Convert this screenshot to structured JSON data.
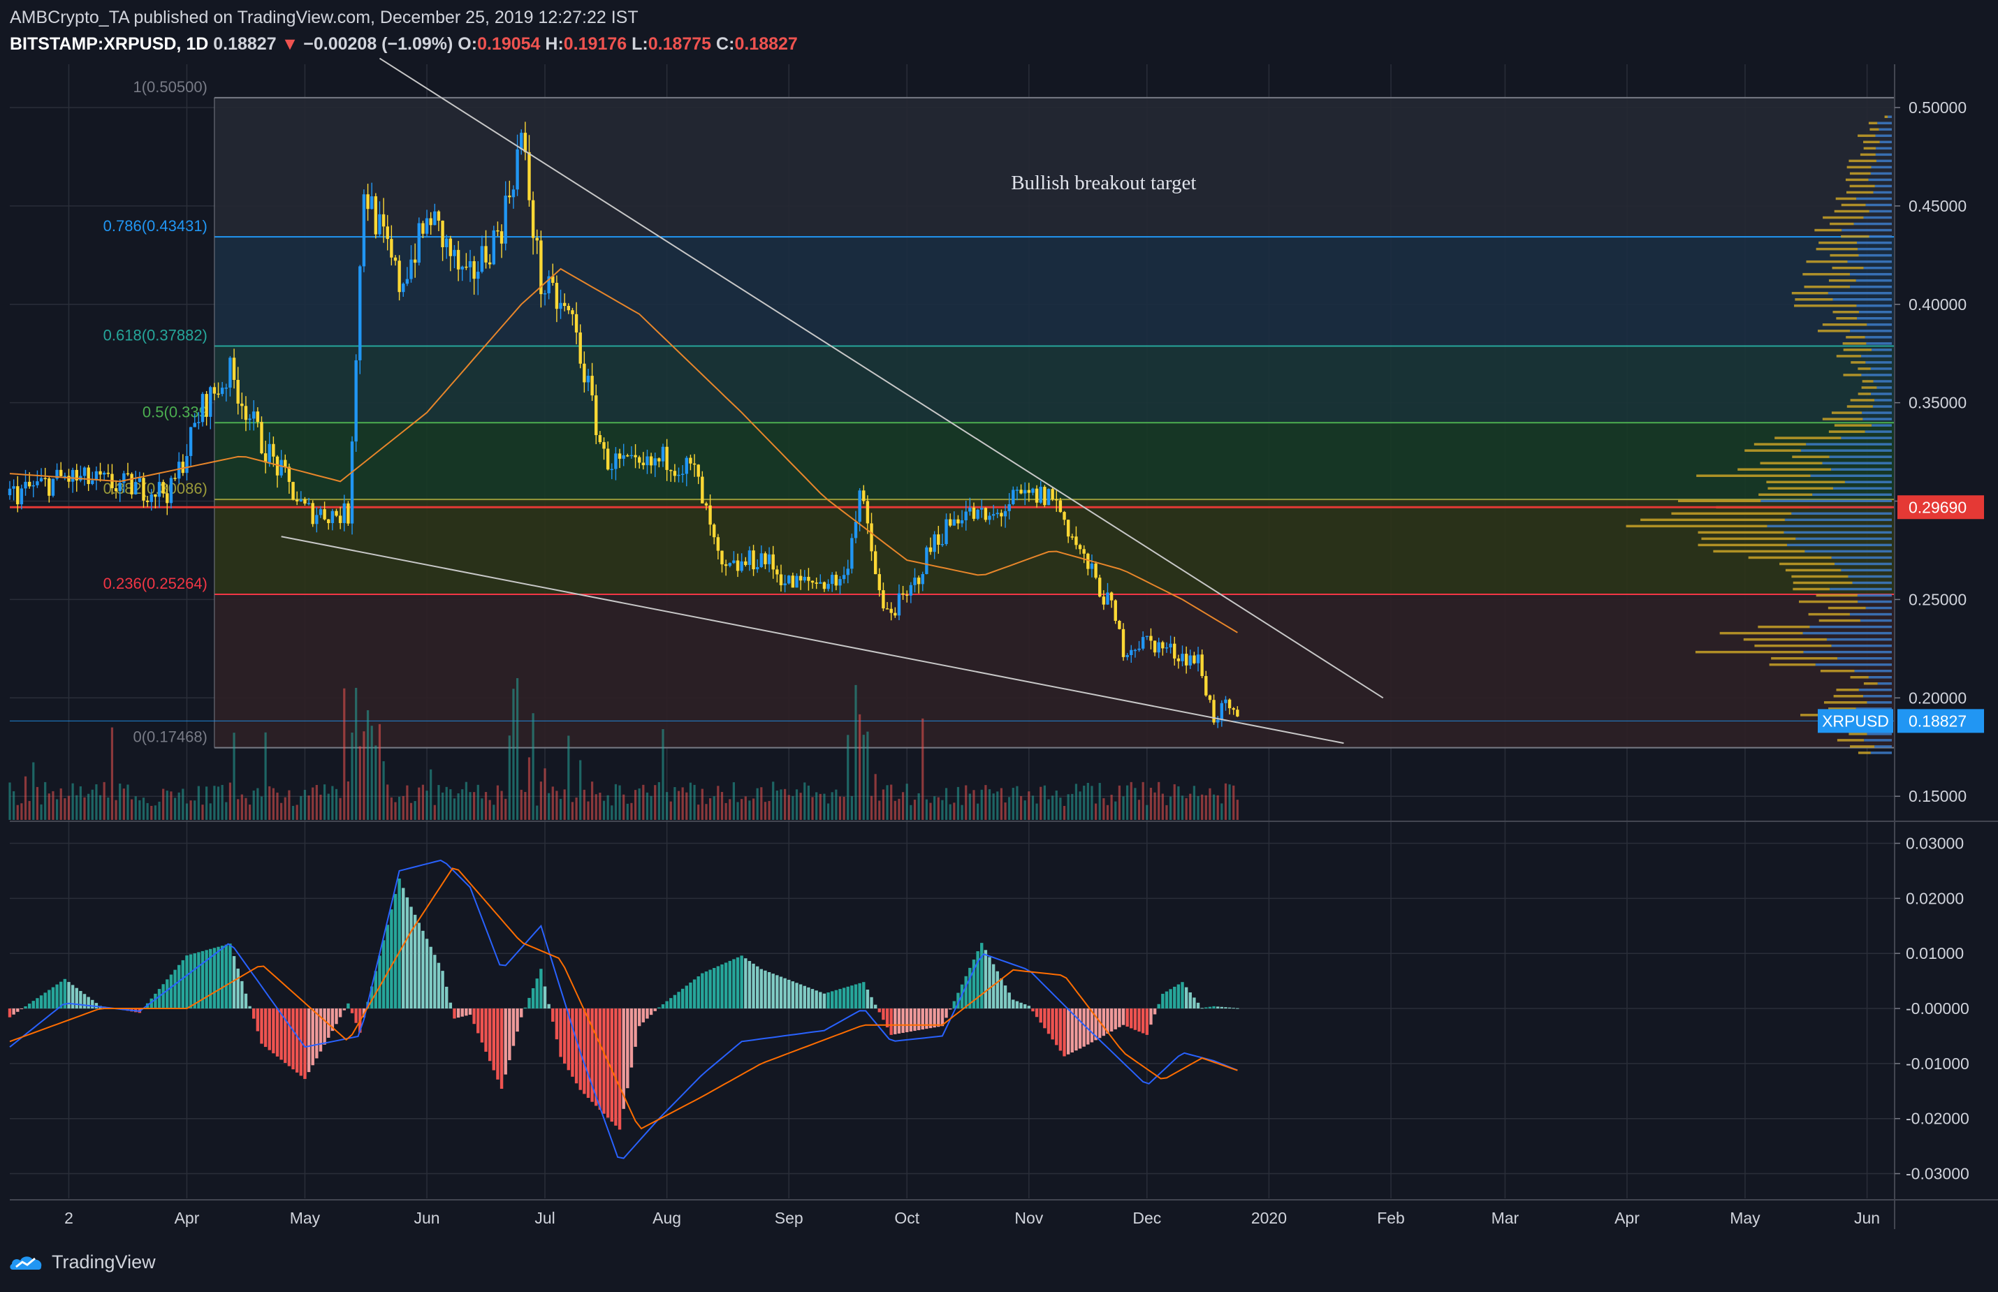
{
  "header": {
    "line1": "AMBCrypto_TA published on TradingView.com, December 25, 2019 12:27:22 IST",
    "symbol": "BITSTAMP:XRPUSD, 1D",
    "last": "0.18827",
    "arrow": "▼",
    "change": "−0.00208 (−1.09%)",
    "o_label": "O:",
    "o": "0.19054",
    "h_label": "H:",
    "h": "0.19176",
    "l_label": "L:",
    "l": "0.18775",
    "c_label": "C:",
    "c": "0.18827"
  },
  "branding": {
    "name": "TradingView"
  },
  "colors": {
    "background": "#131722",
    "grid": "#2a2e39",
    "candle_up": "#2196f3",
    "candle_down": "#fdd835",
    "ma": "#e8862a",
    "volume_up": "#26a69a",
    "volume_down": "#ef5350",
    "macd": "#2962ff",
    "signal": "#ff6d00",
    "hist_pos": "#80cbc4",
    "hist_neg": "#ef9a9a",
    "poc": "#e53935",
    "price_tag": "#2196f3"
  },
  "chart_data": {
    "type": "candlestick",
    "symbol": "XRPUSD",
    "timeframe": "1D",
    "annotation": "Bullish breakout target",
    "price_axis": {
      "ylim": [
        0.138,
        0.522
      ],
      "ticks": [
        "0.50000",
        "0.45000",
        "0.40000",
        "0.35000",
        "0.30000",
        "0.25000",
        "0.20000",
        "0.15000"
      ],
      "tick_values": [
        0.5,
        0.45,
        0.4,
        0.35,
        0.3,
        0.25,
        0.2,
        0.15
      ]
    },
    "macd_axis": {
      "ylim": [
        -0.0345,
        0.034
      ],
      "ticks": [
        "0.03000",
        "0.02000",
        "0.01000",
        "-0.00000",
        "-0.01000",
        "-0.02000",
        "-0.03000"
      ],
      "tick_values": [
        0.03,
        0.02,
        0.01,
        0,
        -0.01,
        -0.02,
        -0.03
      ]
    },
    "time_axis": {
      "labels": [
        "2",
        "Apr",
        "May",
        "Jun",
        "Jul",
        "Aug",
        "Sep",
        "Oct",
        "Nov",
        "Dec",
        "2020",
        "Feb",
        "Mar",
        "Apr",
        "May",
        "Jun"
      ],
      "dates": [
        "2019-03-02",
        "2019-04-01",
        "2019-05-01",
        "2019-06-01",
        "2019-07-01",
        "2019-08-01",
        "2019-09-01",
        "2019-10-01",
        "2019-11-01",
        "2019-12-01",
        "2020-01-01",
        "2020-02-01",
        "2020-03-01",
        "2020-04-01",
        "2020-05-01",
        "2020-06-01"
      ],
      "range": [
        "2019-02-15",
        "2020-06-08"
      ]
    },
    "fib_levels": [
      {
        "label": "1(0.50500)",
        "value": 0.505,
        "color": "#787b86",
        "fill": "#252833"
      },
      {
        "label": "0.786(0.43431)",
        "value": 0.43431,
        "color": "#2196f3",
        "fill": "#1b2d41"
      },
      {
        "label": "0.618(0.37882)",
        "value": 0.37882,
        "color": "#26a69a",
        "fill": "#1a3537"
      },
      {
        "label": "0.5(0.339",
        "value": 0.33984,
        "color": "#4caf50",
        "fill": "#173a26"
      },
      {
        "label": "0.382(0.30086)",
        "value": 0.30086,
        "color": "#9a9a3a",
        "fill": "#2c3418"
      },
      {
        "label": "0.236(0.25264)",
        "value": 0.25264,
        "color": "#f23645",
        "fill": "#2e2026"
      },
      {
        "label": "0(0.17468)",
        "value": 0.17468,
        "color": "#787b86",
        "fill": null
      }
    ],
    "fib_range": [
      "2019-04-08",
      "2020-06-08"
    ],
    "poc_level": {
      "label": "0.29690",
      "value": 0.2969
    },
    "last_price": {
      "symbol": "XRPUSD",
      "label": "0.18827",
      "value": 0.18827
    },
    "trendlines": [
      {
        "from": [
          "2019-05-20",
          0.525
        ],
        "to": [
          "2020-01-30",
          0.2
        ]
      },
      {
        "from": [
          "2019-04-25",
          0.282
        ],
        "to": [
          "2020-01-20",
          0.177
        ]
      }
    ],
    "price_path": [
      [
        "2019-02-15",
        0.303
      ],
      [
        "2019-03-01",
        0.312
      ],
      [
        "2019-03-15",
        0.308
      ],
      [
        "2019-03-28",
        0.305
      ],
      [
        "2019-04-05",
        0.348
      ],
      [
        "2019-04-12",
        0.365
      ],
      [
        "2019-04-20",
        0.33
      ],
      [
        "2019-05-01",
        0.295
      ],
      [
        "2019-05-12",
        0.293
      ],
      [
        "2019-05-16",
        0.46
      ],
      [
        "2019-05-25",
        0.41
      ],
      [
        "2019-06-02",
        0.445
      ],
      [
        "2019-06-11",
        0.41
      ],
      [
        "2019-06-20",
        0.44
      ],
      [
        "2019-06-25",
        0.485
      ],
      [
        "2019-06-30",
        0.41
      ],
      [
        "2019-07-08",
        0.392
      ],
      [
        "2019-07-16",
        0.322
      ],
      [
        "2019-07-25",
        0.315
      ],
      [
        "2019-08-01",
        0.322
      ],
      [
        "2019-08-08",
        0.315
      ],
      [
        "2019-08-15",
        0.263
      ],
      [
        "2019-08-25",
        0.272
      ],
      [
        "2019-09-01",
        0.258
      ],
      [
        "2019-09-15",
        0.26
      ],
      [
        "2019-09-19",
        0.305
      ],
      [
        "2019-09-25",
        0.243
      ],
      [
        "2019-10-01",
        0.25
      ],
      [
        "2019-10-08",
        0.28
      ],
      [
        "2019-10-15",
        0.295
      ],
      [
        "2019-10-22",
        0.29
      ],
      [
        "2019-10-28",
        0.3
      ],
      [
        "2019-11-01",
        0.302
      ],
      [
        "2019-11-07",
        0.303
      ],
      [
        "2019-11-15",
        0.27
      ],
      [
        "2019-11-22",
        0.245
      ],
      [
        "2019-11-25",
        0.225
      ],
      [
        "2019-12-01",
        0.229
      ],
      [
        "2019-12-08",
        0.223
      ],
      [
        "2019-12-14",
        0.219
      ],
      [
        "2019-12-18",
        0.19
      ],
      [
        "2019-12-21",
        0.195
      ],
      [
        "2019-12-24",
        0.188
      ]
    ],
    "ma_path": [
      [
        "2019-02-15",
        0.314
      ],
      [
        "2019-03-15",
        0.31
      ],
      [
        "2019-04-15",
        0.323
      ],
      [
        "2019-05-10",
        0.31
      ],
      [
        "2019-06-01",
        0.345
      ],
      [
        "2019-06-25",
        0.4
      ],
      [
        "2019-07-05",
        0.418
      ],
      [
        "2019-07-25",
        0.395
      ],
      [
        "2019-08-20",
        0.345
      ],
      [
        "2019-09-10",
        0.302
      ],
      [
        "2019-10-01",
        0.27
      ],
      [
        "2019-10-20",
        0.262
      ],
      [
        "2019-11-07",
        0.275
      ],
      [
        "2019-11-25",
        0.265
      ],
      [
        "2019-12-10",
        0.25
      ],
      [
        "2019-12-25",
        0.232
      ]
    ],
    "macd_path": [
      [
        "2019-02-15",
        -0.007
      ],
      [
        "2019-03-01",
        0.001
      ],
      [
        "2019-03-20",
        -0.0005
      ],
      [
        "2019-04-12",
        0.012
      ],
      [
        "2019-05-01",
        -0.007
      ],
      [
        "2019-05-15",
        -0.005
      ],
      [
        "2019-05-25",
        0.025
      ],
      [
        "2019-06-05",
        0.027
      ],
      [
        "2019-06-12",
        0.022
      ],
      [
        "2019-06-20",
        0.007
      ],
      [
        "2019-06-30",
        0.015
      ],
      [
        "2019-07-10",
        -0.008
      ],
      [
        "2019-07-20",
        -0.028
      ],
      [
        "2019-07-30",
        -0.02
      ],
      [
        "2019-08-10",
        -0.012
      ],
      [
        "2019-08-20",
        -0.006
      ],
      [
        "2019-09-10",
        -0.004
      ],
      [
        "2019-09-20",
        0.0
      ],
      [
        "2019-09-27",
        -0.006
      ],
      [
        "2019-10-10",
        -0.005
      ],
      [
        "2019-10-20",
        0.01
      ],
      [
        "2019-11-01",
        0.007
      ],
      [
        "2019-11-15",
        -0.003
      ],
      [
        "2019-12-01",
        -0.014
      ],
      [
        "2019-12-10",
        -0.008
      ],
      [
        "2019-12-18",
        -0.0095
      ],
      [
        "2019-12-25",
        -0.0115
      ]
    ],
    "signal_path": [
      [
        "2019-02-15",
        -0.006
      ],
      [
        "2019-03-10",
        0.0
      ],
      [
        "2019-04-01",
        0.0
      ],
      [
        "2019-04-20",
        0.008
      ],
      [
        "2019-05-12",
        -0.006
      ],
      [
        "2019-05-28",
        0.014
      ],
      [
        "2019-06-08",
        0.026
      ],
      [
        "2019-06-25",
        0.012
      ],
      [
        "2019-07-05",
        0.009
      ],
      [
        "2019-07-25",
        -0.022
      ],
      [
        "2019-08-10",
        -0.016
      ],
      [
        "2019-08-25",
        -0.01
      ],
      [
        "2019-09-20",
        -0.003
      ],
      [
        "2019-10-10",
        -0.003
      ],
      [
        "2019-10-28",
        0.007
      ],
      [
        "2019-11-10",
        0.006
      ],
      [
        "2019-11-25",
        -0.008
      ],
      [
        "2019-12-05",
        -0.013
      ],
      [
        "2019-12-15",
        -0.009
      ],
      [
        "2019-12-25",
        -0.0115
      ]
    ],
    "volume_profile_peaks": [
      [
        0.49,
        0.08
      ],
      [
        0.46,
        0.12
      ],
      [
        0.43,
        0.18
      ],
      [
        0.4,
        0.22
      ],
      [
        0.375,
        0.15
      ],
      [
        0.35,
        0.09
      ],
      [
        0.33,
        0.3
      ],
      [
        0.3,
        0.5
      ],
      [
        0.29,
        0.62
      ],
      [
        0.275,
        0.4
      ],
      [
        0.26,
        0.28
      ],
      [
        0.245,
        0.18
      ],
      [
        0.225,
        0.5
      ],
      [
        0.21,
        0.08
      ],
      [
        0.19,
        0.22
      ]
    ]
  }
}
